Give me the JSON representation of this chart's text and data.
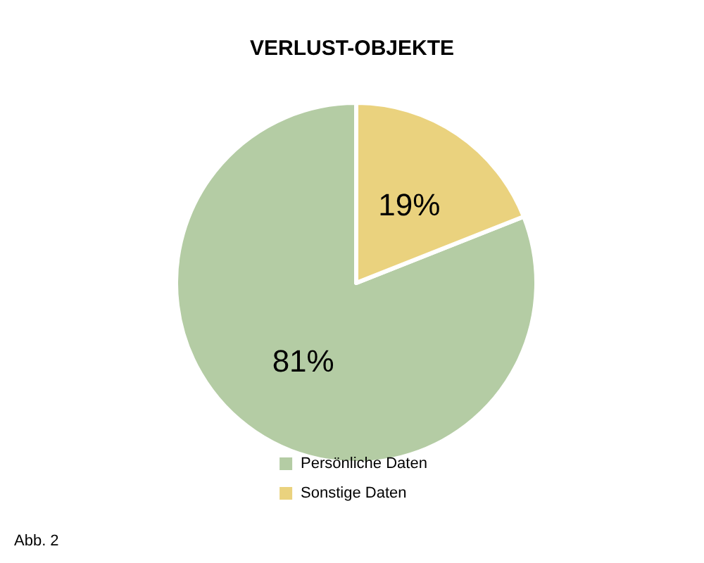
{
  "chart_data": {
    "type": "pie",
    "title": "VERLUST-OBJEKTE",
    "categories": [
      "Persönliche Daten",
      "Sonstige Daten"
    ],
    "values": [
      81,
      19
    ],
    "colors": [
      "#b4cca4",
      "#ead27e"
    ],
    "value_labels": [
      "81%",
      "19%"
    ],
    "legend": "bottom",
    "annotations": [
      "Abb. 2"
    ]
  }
}
